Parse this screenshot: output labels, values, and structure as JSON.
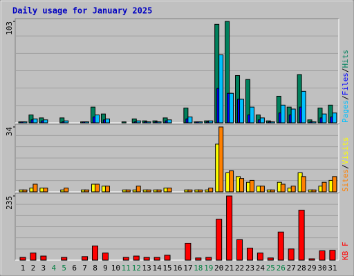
{
  "chart_data": [
    {
      "type": "bar",
      "title": "Daily usage for January 2025",
      "ylim": [
        0,
        103
      ],
      "yticks": [
        103
      ],
      "legend_separator": "/",
      "series": [
        {
          "name": "Hits",
          "color": "#00805c",
          "values": [
            1,
            8,
            5,
            0,
            5,
            0,
            1,
            16,
            9,
            0,
            1,
            4,
            2,
            2,
            5,
            0,
            15,
            1,
            2,
            100,
            103,
            48,
            44,
            8,
            2,
            27,
            16,
            49,
            3,
            15,
            18
          ]
        },
        {
          "name": "Files",
          "color": "#0000ff",
          "values": [
            1,
            3,
            2,
            0,
            1,
            0,
            1,
            6,
            3,
            0,
            0,
            1,
            1,
            1,
            2,
            0,
            4,
            1,
            1,
            35,
            30,
            24,
            8,
            3,
            1,
            10,
            8,
            16,
            1,
            5,
            6
          ]
        },
        {
          "name": "Pages",
          "color": "#00c0ff",
          "values": [
            1,
            4,
            3,
            0,
            2,
            0,
            1,
            8,
            4,
            0,
            0,
            2,
            1,
            1,
            3,
            0,
            6,
            1,
            2,
            69,
            30,
            24,
            16,
            5,
            1,
            18,
            14,
            32,
            1,
            9,
            10
          ]
        }
      ]
    },
    {
      "type": "bar",
      "ylim": [
        0,
        34
      ],
      "yticks": [
        34
      ],
      "legend_separator": "/",
      "series": [
        {
          "name": "Visits",
          "color": "#ffff00",
          "values": [
            1,
            2,
            2,
            0,
            1,
            0,
            1,
            4,
            3,
            0,
            1,
            1,
            1,
            1,
            2,
            0,
            1,
            1,
            1,
            25,
            10,
            8,
            5,
            3,
            1,
            5,
            2,
            10,
            1,
            3,
            6
          ]
        },
        {
          "name": "Sites",
          "color": "#ff8000",
          "values": [
            1,
            4,
            2,
            0,
            2,
            0,
            1,
            4,
            3,
            0,
            1,
            3,
            1,
            1,
            2,
            0,
            1,
            1,
            2,
            34,
            11,
            7,
            6,
            3,
            1,
            4,
            3,
            8,
            1,
            5,
            8
          ]
        }
      ]
    },
    {
      "type": "bar",
      "ylim": [
        0,
        235
      ],
      "yticks": [
        235
      ],
      "series": [
        {
          "name": "KB F",
          "color": "#ff0000",
          "values": [
            10,
            26,
            15,
            0,
            10,
            0,
            13,
            52,
            26,
            0,
            10,
            15,
            10,
            10,
            18,
            0,
            62,
            8,
            10,
            150,
            235,
            75,
            44,
            26,
            8,
            103,
            41,
            183,
            5,
            34,
            36
          ]
        }
      ],
      "categories": [
        "1",
        "2",
        "3",
        "4",
        "5",
        "6",
        "7",
        "8",
        "9",
        "10",
        "11",
        "12",
        "13",
        "14",
        "15",
        "16",
        "17",
        "18",
        "19",
        "20",
        "21",
        "22",
        "23",
        "24",
        "25",
        "26",
        "27",
        "28",
        "29",
        "30",
        "31"
      ],
      "category_colors": [
        "#000",
        "#000",
        "#000",
        "#007f40",
        "#007f40",
        "#000",
        "#000",
        "#000",
        "#000",
        "#000",
        "#007f40",
        "#007f40",
        "#000",
        "#000",
        "#000",
        "#000",
        "#000",
        "#007f40",
        "#007f40",
        "#000",
        "#000",
        "#000",
        "#000",
        "#000",
        "#007f40",
        "#007f40",
        "#000",
        "#000",
        "#000",
        "#000",
        "#000"
      ]
    }
  ]
}
